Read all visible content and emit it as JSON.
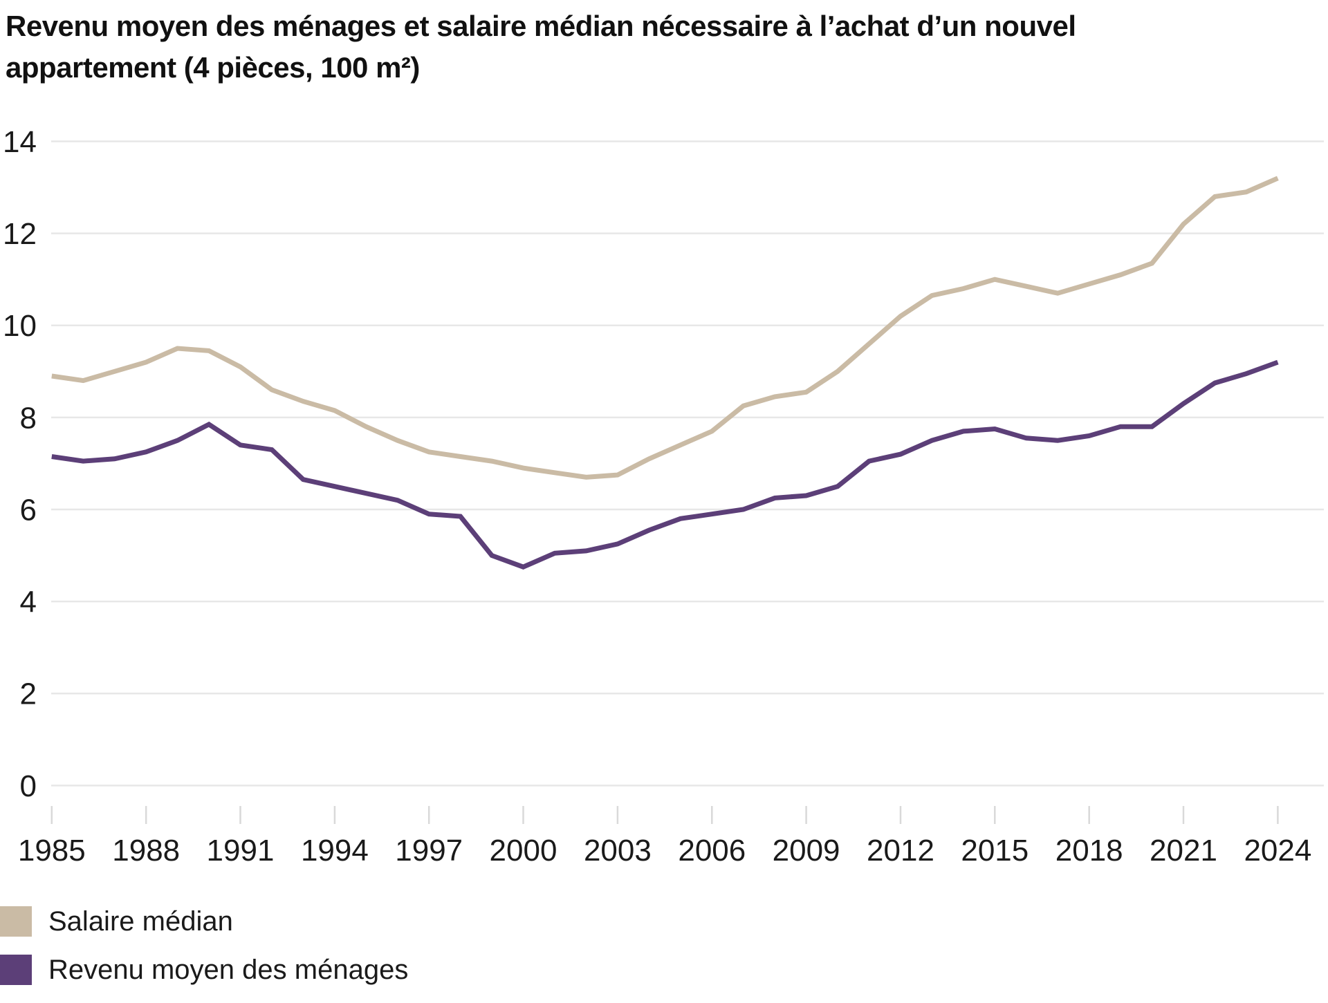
{
  "title": {
    "line1": "Revenu moyen des ménages et salaire médian nécessaire à l’achat d’un nouvel",
    "line2": "appartement (4 pièces, 100 m²)"
  },
  "legend": {
    "items": [
      {
        "label": "Salaire médian",
        "color": "#cabba5"
      },
      {
        "label": "Revenu moyen des ménages",
        "color": "#5c3f78"
      }
    ]
  },
  "chart_data": {
    "type": "line",
    "title": "Revenu moyen des ménages et salaire médian nécessaire à l’achat d’un nouvel appartement (4 pièces, 100 m²)",
    "x": [
      1985,
      1986,
      1987,
      1988,
      1989,
      1990,
      1991,
      1992,
      1993,
      1994,
      1995,
      1996,
      1997,
      1998,
      1999,
      2000,
      2001,
      2002,
      2003,
      2004,
      2005,
      2006,
      2007,
      2008,
      2009,
      2010,
      2011,
      2012,
      2013,
      2014,
      2015,
      2016,
      2017,
      2018,
      2019,
      2020,
      2021,
      2022,
      2023,
      2024
    ],
    "series": [
      {
        "name": "Salaire médian",
        "color": "#cabba5",
        "values": [
          8.9,
          8.8,
          9.0,
          9.2,
          9.5,
          9.45,
          9.1,
          8.6,
          8.35,
          8.15,
          7.8,
          7.5,
          7.25,
          7.15,
          7.05,
          6.9,
          6.8,
          6.7,
          6.75,
          7.1,
          7.4,
          7.7,
          8.25,
          8.45,
          8.55,
          9.0,
          9.6,
          10.2,
          10.65,
          10.8,
          11.0,
          10.85,
          10.7,
          10.9,
          11.1,
          11.35,
          12.2,
          12.8,
          12.9,
          13.2
        ]
      },
      {
        "name": "Revenu moyen des ménages",
        "color": "#5c3f78",
        "values": [
          7.15,
          7.05,
          7.1,
          7.25,
          7.5,
          7.85,
          7.4,
          7.3,
          6.65,
          6.5,
          6.35,
          6.2,
          5.9,
          5.85,
          5.0,
          4.75,
          5.05,
          5.1,
          5.25,
          5.55,
          5.8,
          5.9,
          6.0,
          6.25,
          6.3,
          6.5,
          7.05,
          7.2,
          7.5,
          7.7,
          7.75,
          7.55,
          7.5,
          7.6,
          7.8,
          7.8,
          8.3,
          8.75,
          8.95,
          9.2
        ]
      }
    ],
    "xlabel": "",
    "ylabel": "",
    "ylim": [
      0,
      14
    ],
    "y_ticks": [
      0,
      2,
      4,
      6,
      8,
      10,
      12,
      14
    ],
    "x_tick_years": [
      1985,
      1988,
      1991,
      1994,
      1997,
      2000,
      2003,
      2006,
      2009,
      2012,
      2015,
      2018,
      2021,
      2024
    ],
    "grid": "horizontal",
    "legend_position": "bottom-left",
    "line_width": 7,
    "colors": {
      "grid": "#e7e7e7",
      "tick": "#d9d9d9",
      "text": "#1a1a1a"
    }
  }
}
